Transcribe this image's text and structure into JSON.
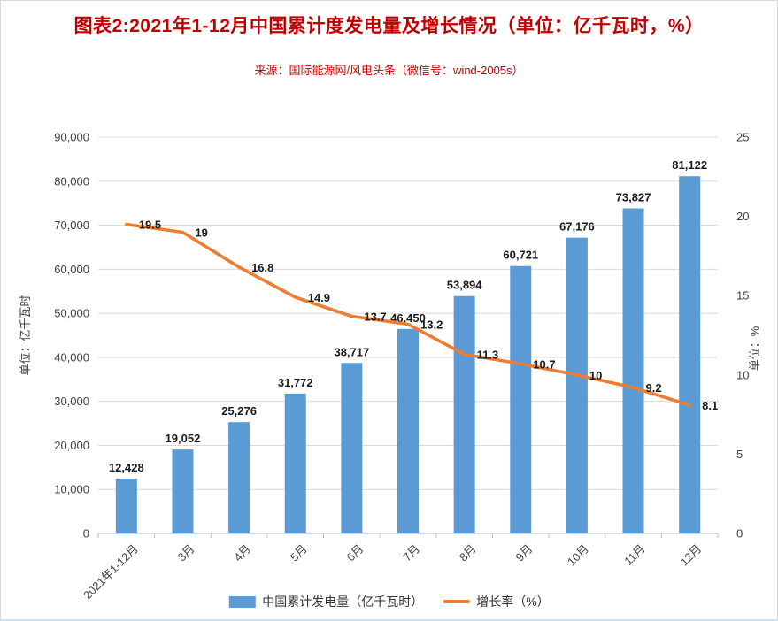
{
  "page": {
    "title": "图表2:2021年1-12月中国累计度发电量及增长情况（单位：亿千瓦时，%）",
    "source": "来源：国际能源网/风电头条（微信号：wind-2005s）",
    "title_color": "#c00000"
  },
  "chart_data": {
    "type": "combo-bar-line",
    "categories": [
      "2021年1-12月",
      "3月",
      "4月",
      "5月",
      "6月",
      "7月",
      "8月",
      "9月",
      "10月",
      "11月",
      "12月"
    ],
    "series": [
      {
        "name": "中国累计发电量（亿千瓦时）",
        "type": "bar",
        "axis": "left",
        "color": "#5B9BD5",
        "values": [
          12428,
          19052,
          25276,
          31772,
          38717,
          46450,
          53894,
          60721,
          67176,
          73827,
          81122
        ]
      },
      {
        "name": "增长率（%）",
        "type": "line",
        "axis": "right",
        "color": "#ED7D31",
        "values": [
          19.5,
          19,
          16.8,
          14.9,
          13.7,
          13.2,
          11.3,
          10.7,
          10,
          9.2,
          8.1
        ]
      }
    ],
    "y_left": {
      "title": "单位：亿千瓦时",
      "min": 0,
      "max": 90000,
      "step": 10000
    },
    "y_right": {
      "title": "单位：%",
      "min": 0,
      "max": 25,
      "step": 5
    },
    "grid": true,
    "data_labels": true,
    "legend_position": "bottom",
    "colors": {
      "gridline": "#d9d9d9",
      "axis_line": "#bfbfbf",
      "tick_text": "#404040",
      "value_label": "#1a1a1a"
    }
  }
}
